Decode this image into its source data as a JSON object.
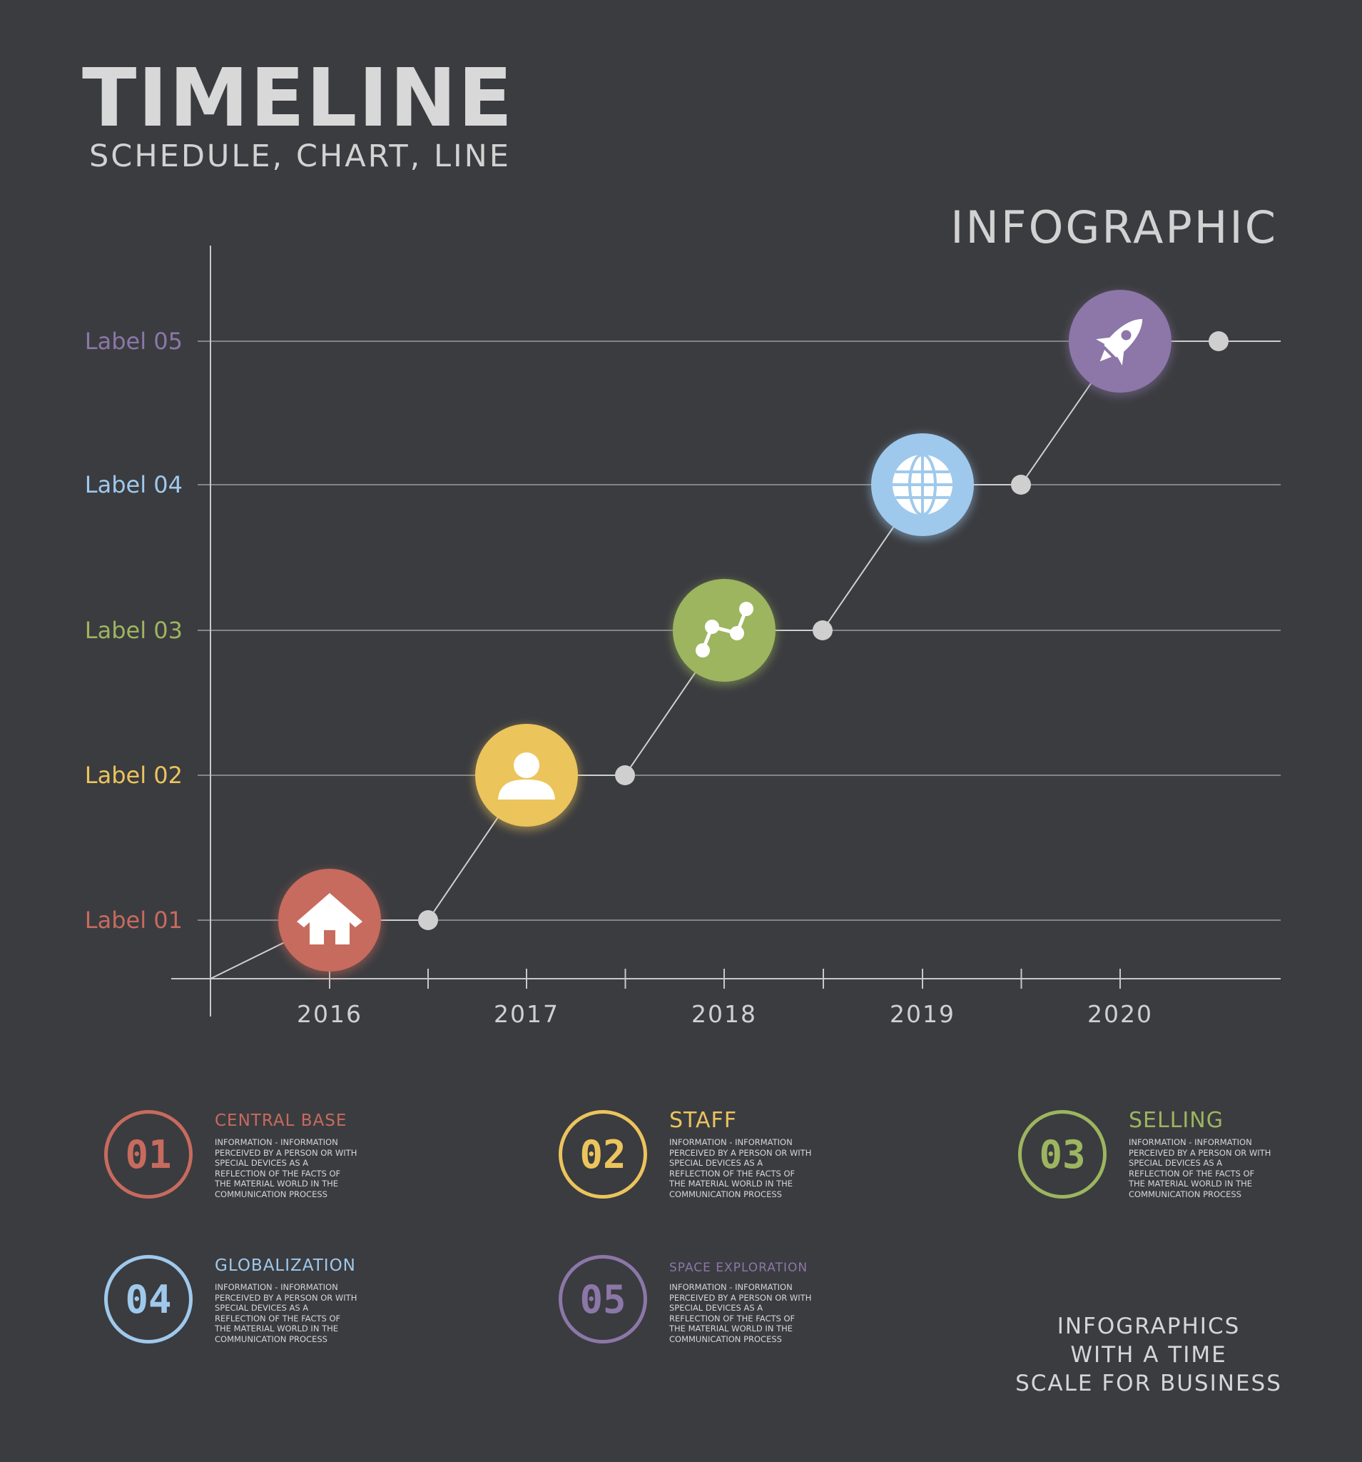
{
  "header": {
    "title": "TIMELINE",
    "subtitle": "SCHEDULE, CHART, LINE",
    "tag": "INFOGRAPHIC"
  },
  "chart_data": {
    "type": "line",
    "x": [
      "2016",
      "2017",
      "2018",
      "2019",
      "2020"
    ],
    "y_categories": [
      "Label 01",
      "Label 02",
      "Label 03",
      "Label 04",
      "Label 05"
    ],
    "y_colors": [
      "#c76b5e",
      "#ecc45c",
      "#9db55f",
      "#9fc9ec",
      "#8c77a8"
    ],
    "series": [
      {
        "points": [
          {
            "x": "2016",
            "y": "Label 01",
            "icon": "home-icon",
            "color": "#c76b5e"
          },
          {
            "x": "2017",
            "y": "Label 02",
            "icon": "user-icon",
            "color": "#ecc45c"
          },
          {
            "x": "2018",
            "y": "Label 03",
            "icon": "chart-line-icon",
            "color": "#9db55f"
          },
          {
            "x": "2019",
            "y": "Label 04",
            "icon": "globe-icon",
            "color": "#9fc9ec"
          },
          {
            "x": "2020",
            "y": "Label 05",
            "icon": "rocket-icon",
            "color": "#8c77a8"
          }
        ]
      }
    ],
    "grid": true
  },
  "legend": [
    {
      "number": "01",
      "title": "CENTRAL BASE",
      "text": "INFORMATION - INFORMATION PERCEIVED BY A PERSON OR WITH SPECIAL DEVICES AS A REFLECTION OF THE FACTS OF THE MATERIAL WORLD IN THE COMMUNICATION PROCESS",
      "color": "#c76b5e"
    },
    {
      "number": "02",
      "title": "STAFF",
      "text": "INFORMATION - INFORMATION PERCEIVED BY A PERSON OR WITH SPECIAL DEVICES AS A REFLECTION OF THE FACTS OF THE MATERIAL WORLD IN THE COMMUNICATION PROCESS",
      "color": "#ecc45c"
    },
    {
      "number": "03",
      "title": "SELLING",
      "text": "INFORMATION - INFORMATION PERCEIVED BY A PERSON OR WITH SPECIAL DEVICES AS A REFLECTION OF THE FACTS OF THE MATERIAL WORLD IN THE COMMUNICATION PROCESS",
      "color": "#9db55f"
    },
    {
      "number": "04",
      "title": "GLOBALIZATION",
      "text": "INFORMATION - INFORMATION PERCEIVED BY A PERSON OR WITH SPECIAL DEVICES AS A REFLECTION OF THE FACTS OF THE MATERIAL WORLD IN THE COMMUNICATION PROCESS",
      "color": "#9fc9ec"
    },
    {
      "number": "05",
      "title": "SPACE EXPLORATION",
      "text": "INFORMATION - INFORMATION PERCEIVED BY A PERSON OR WITH SPECIAL DEVICES AS A REFLECTION OF THE FACTS OF THE MATERIAL WORLD IN THE COMMUNICATION PROCESS",
      "color": "#8c77a8"
    }
  ],
  "tagline": [
    "INFOGRAPHICS",
    "WITH A TIME",
    "SCALE FOR BUSINESS"
  ]
}
